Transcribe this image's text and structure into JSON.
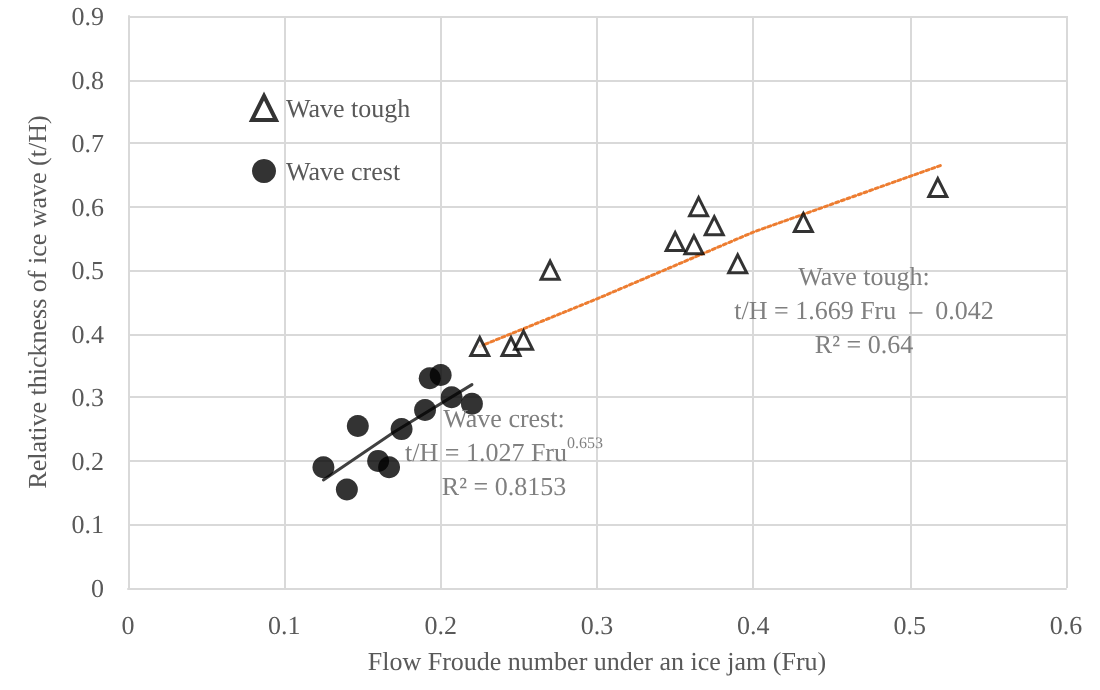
{
  "chart_data": {
    "type": "scatter",
    "xlabel": "Flow Froude number under an ice jam (Fru)",
    "ylabel": "Relative thickness of ice wave (t/H)",
    "xlim": [
      0,
      0.6
    ],
    "xticks": [
      0,
      0.1,
      0.2,
      0.3,
      0.4,
      0.5,
      0.6
    ],
    "ylim": [
      0,
      0.9
    ],
    "yticks": [
      0,
      0.1,
      0.2,
      0.3,
      0.4,
      0.5,
      0.6,
      0.7,
      0.8,
      0.9
    ],
    "grid": true,
    "legend": "top left",
    "series": [
      {
        "name": "Wave tough",
        "color": "#000000",
        "marker": "triangle",
        "x": [
          0.225,
          0.245,
          0.253,
          0.27,
          0.35,
          0.362,
          0.365,
          0.375,
          0.39,
          0.432,
          0.518
        ],
        "values": [
          0.38,
          0.38,
          0.39,
          0.5,
          0.545,
          0.54,
          0.6,
          0.57,
          0.51,
          0.575,
          0.63
        ]
      },
      {
        "name": "Wave crest",
        "color": "#000000",
        "marker": "circle",
        "x": [
          0.125,
          0.14,
          0.147,
          0.16,
          0.167,
          0.175,
          0.19,
          0.193,
          0.2,
          0.207,
          0.22
        ],
        "values": [
          0.19,
          0.155,
          0.255,
          0.2,
          0.19,
          0.25,
          0.28,
          0.33,
          0.335,
          0.3,
          0.29
        ]
      },
      {
        "type": "line",
        "color": "#ed7d31",
        "line_style": "dotted",
        "x": [
          0.225,
          0.3,
          0.4,
          0.52
        ],
        "values": [
          0.38,
          0.455,
          0.56,
          0.665
        ]
      },
      {
        "type": "line",
        "color": "#404040",
        "line_style": "solid",
        "x": [
          0.125,
          0.17,
          0.22
        ],
        "values": [
          0.17,
          0.245,
          0.32
        ]
      }
    ],
    "annotations": [
      "Wave tough:\nt/H = 1.669 Fru  –  0.042\nR² = 0.64",
      "Wave crest:\nt/H = 1.027 Fru$^{0.653}$\nR² = 0.8153"
    ]
  }
}
